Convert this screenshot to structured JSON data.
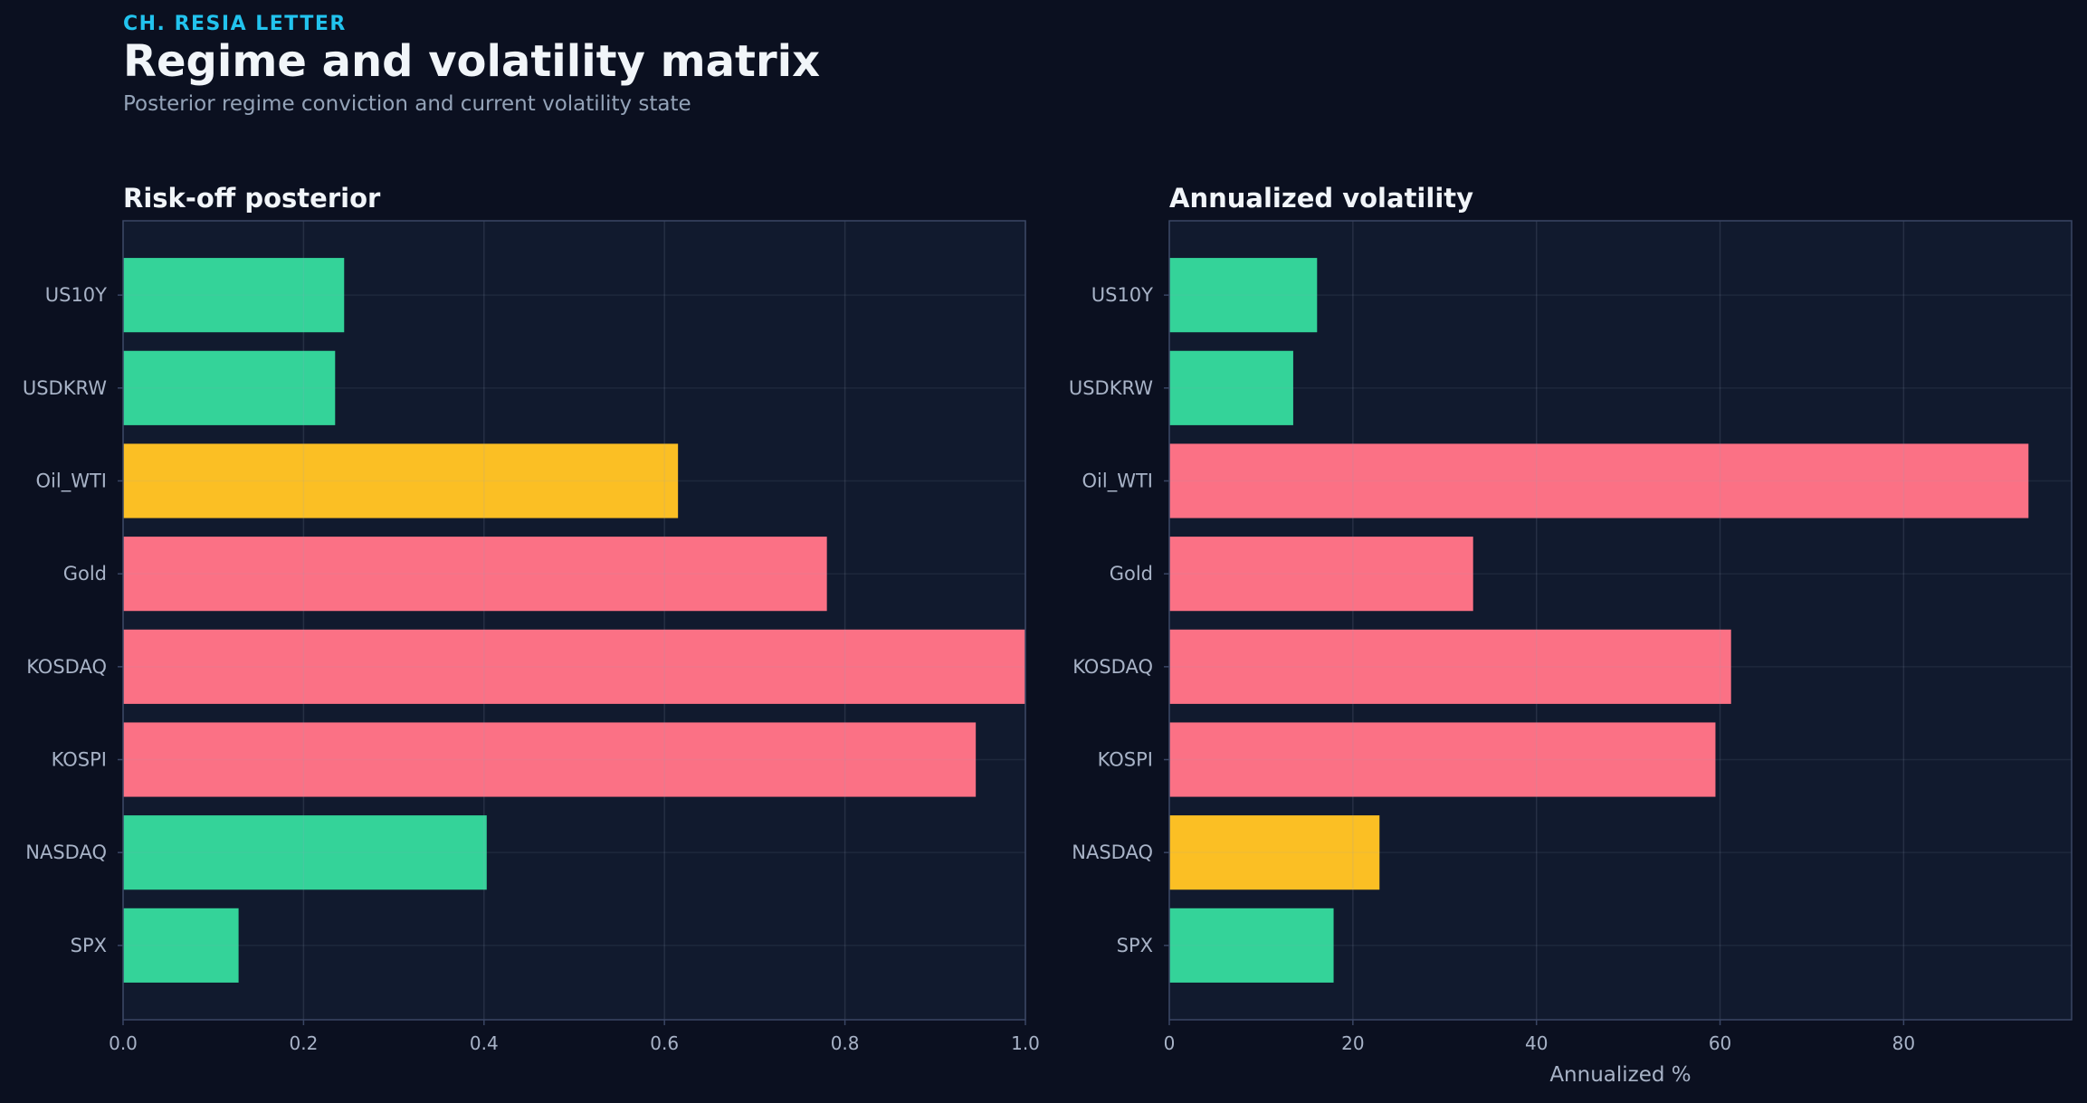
{
  "header": {
    "kicker": "CH. RESIA LETTER",
    "title": "Regime and volatility matrix",
    "subtitle": "Posterior regime conviction and current volatility state"
  },
  "colors": {
    "background": "#0b1020",
    "panel": "#111a2e",
    "grid": "#26304a",
    "frame": "#3a4664",
    "calm": "#34d399",
    "transition": "#fbbf24",
    "stress": "#fb7185"
  },
  "chart_data": [
    {
      "type": "bar",
      "orientation": "horizontal",
      "title": "Risk-off posterior",
      "xlabel": "",
      "ylabel": "",
      "categories": [
        "US10Y",
        "USDKRW",
        "Oil_WTI",
        "Gold",
        "KOSDAQ",
        "KOSPI",
        "NASDAQ",
        "SPX"
      ],
      "values": [
        0.245,
        0.235,
        0.615,
        0.78,
        1.0,
        0.945,
        0.403,
        0.128
      ],
      "bar_colors": [
        "#34d399",
        "#34d399",
        "#fbbf24",
        "#fb7185",
        "#fb7185",
        "#fb7185",
        "#34d399",
        "#34d399"
      ],
      "xlim": [
        0,
        1.0
      ],
      "xticks": [
        0.0,
        0.2,
        0.4,
        0.6,
        0.8,
        1.0
      ],
      "xtick_labels": [
        "0.0",
        "0.2",
        "0.4",
        "0.6",
        "0.8",
        "1.0"
      ],
      "grid": true
    },
    {
      "type": "bar",
      "orientation": "horizontal",
      "title": "Annualized volatility",
      "xlabel": "Annualized %",
      "ylabel": "",
      "categories": [
        "US10Y",
        "USDKRW",
        "Oil_WTI",
        "Gold",
        "KOSDAQ",
        "KOSPI",
        "NASDAQ",
        "SPX"
      ],
      "values": [
        16.1,
        13.5,
        93.6,
        33.1,
        61.2,
        59.5,
        22.9,
        17.9
      ],
      "bar_colors": [
        "#34d399",
        "#34d399",
        "#fb7185",
        "#fb7185",
        "#fb7185",
        "#fb7185",
        "#fbbf24",
        "#34d399"
      ],
      "xlim": [
        0,
        98.3
      ],
      "xticks": [
        0,
        20,
        40,
        60,
        80
      ],
      "xtick_labels": [
        "0",
        "20",
        "40",
        "60",
        "80"
      ],
      "grid": true
    }
  ]
}
